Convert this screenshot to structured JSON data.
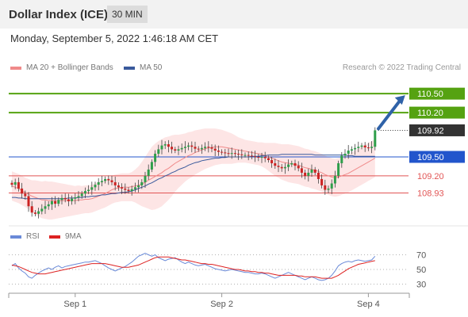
{
  "header": {
    "title": "Dollar Index (ICE)",
    "timeframe": "30 MIN"
  },
  "datetime": "Monday, September 5, 2022 1:46:18 AM CET",
  "credit": "Research © 2022 Trading Central",
  "legend": {
    "ma20": {
      "label": "MA 20 + Bollinger Bands",
      "color": "#f08a8a"
    },
    "ma50": {
      "label": "MA 50",
      "color": "#3a5a9c"
    },
    "rsi": {
      "label": "RSI",
      "color": "#6a8ad8"
    },
    "rsi_ma": {
      "label": "9MA",
      "color": "#dd2222"
    }
  },
  "colors": {
    "resistance": "#55a211",
    "pivot": "#2255cc",
    "support": "#e25555",
    "bull": "#2e9e4a",
    "bear": "#cc2222",
    "arrow": "#2f62a8"
  },
  "chart_data": [
    {
      "type": "candlestick",
      "title": "Dollar Index (ICE)",
      "ylim": [
        108.41,
        110.79
      ],
      "x_tick_labels": [
        "Sep 1",
        "Sep 2",
        "Sep 4"
      ],
      "x_tick_index": [
        19,
        63,
        107
      ],
      "n_bars": 110,
      "last_price": 109.92,
      "levels": [
        {
          "value": 110.5,
          "label": "110.50",
          "role": "resistance"
        },
        {
          "value": 110.2,
          "label": "110.20",
          "role": "resistance"
        },
        {
          "value": 109.92,
          "label": "109.92",
          "role": "last"
        },
        {
          "value": 109.5,
          "label": "109.50",
          "role": "pivot"
        },
        {
          "value": 109.2,
          "label": "109.20",
          "role": "support"
        },
        {
          "value": 108.93,
          "label": "108.93",
          "role": "support"
        }
      ],
      "arrow": {
        "from_index": 110,
        "from_value": 109.92,
        "to_index": 119,
        "to_value": 110.5
      },
      "closes": [
        109.06,
        109.1,
        109.0,
        108.92,
        108.88,
        108.72,
        108.62,
        108.6,
        108.64,
        108.68,
        108.72,
        108.75,
        108.8,
        108.76,
        108.82,
        108.85,
        108.83,
        108.8,
        108.84,
        108.86,
        108.88,
        108.92,
        108.96,
        108.98,
        109.02,
        109.06,
        109.1,
        109.12,
        109.15,
        109.13,
        109.1,
        109.05,
        109.02,
        109.0,
        108.98,
        108.96,
        108.99,
        109.02,
        109.05,
        109.1,
        109.2,
        109.3,
        109.42,
        109.55,
        109.62,
        109.68,
        109.7,
        109.66,
        109.62,
        109.6,
        109.62,
        109.64,
        109.66,
        109.68,
        109.66,
        109.63,
        109.62,
        109.64,
        109.66,
        109.65,
        109.63,
        109.6,
        109.58,
        109.57,
        109.56,
        109.55,
        109.56,
        109.55,
        109.54,
        109.53,
        109.53,
        109.52,
        109.51,
        109.5,
        109.49,
        109.5,
        109.48,
        109.45,
        109.4,
        109.36,
        109.34,
        109.32,
        109.34,
        109.38,
        109.4,
        109.36,
        109.32,
        109.25,
        109.2,
        109.25,
        109.3,
        109.25,
        109.15,
        109.05,
        108.98,
        109.0,
        109.08,
        109.2,
        109.4,
        109.52,
        109.55,
        109.6,
        109.62,
        109.64,
        109.66,
        109.68,
        109.65,
        109.64,
        109.66,
        109.92
      ],
      "ma20": [
        109.04,
        109.02,
        109.0,
        108.97,
        108.94,
        108.91,
        108.88,
        108.86,
        108.84,
        108.82,
        108.82,
        108.81,
        108.81,
        108.81,
        108.81,
        108.81,
        108.81,
        108.81,
        108.81,
        108.81,
        108.82,
        108.82,
        108.83,
        108.83,
        108.84,
        108.86,
        108.88,
        108.9,
        108.92,
        108.95,
        108.98,
        109.0,
        109.01,
        109.02,
        109.02,
        109.02,
        109.03,
        109.04,
        109.05,
        109.07,
        109.1,
        109.13,
        109.16,
        109.19,
        109.22,
        109.25,
        109.29,
        109.32,
        109.36,
        109.4,
        109.43,
        109.46,
        109.49,
        109.52,
        109.54,
        109.57,
        109.59,
        109.61,
        109.63,
        109.64,
        109.65,
        109.66,
        109.66,
        109.66,
        109.65,
        109.64,
        109.63,
        109.62,
        109.61,
        109.6,
        109.59,
        109.58,
        109.57,
        109.56,
        109.55,
        109.54,
        109.52,
        109.5,
        109.48,
        109.46,
        109.44,
        109.42,
        109.41,
        109.4,
        109.39,
        109.38,
        109.37,
        109.35,
        109.33,
        109.32,
        109.3,
        109.29,
        109.27,
        109.25,
        109.22,
        109.2,
        109.18,
        109.17,
        109.18,
        109.2,
        109.22,
        109.24,
        109.27,
        109.3,
        109.33,
        109.36,
        109.39,
        109.42,
        109.45,
        109.48
      ],
      "ma50": [
        108.86,
        108.86,
        108.85,
        108.85,
        108.84,
        108.84,
        108.84,
        108.84,
        108.84,
        108.84,
        108.84,
        108.84,
        108.84,
        108.84,
        108.84,
        108.84,
        108.84,
        108.85,
        108.85,
        108.85,
        108.86,
        108.86,
        108.87,
        108.87,
        108.88,
        108.88,
        108.89,
        108.9,
        108.9,
        108.91,
        108.92,
        108.92,
        108.93,
        108.94,
        108.94,
        108.95,
        108.96,
        108.98,
        109.0,
        109.02,
        109.04,
        109.07,
        109.09,
        109.12,
        109.15,
        109.17,
        109.2,
        109.22,
        109.25,
        109.27,
        109.3,
        109.32,
        109.34,
        109.37,
        109.39,
        109.41,
        109.42,
        109.44,
        109.45,
        109.46,
        109.47,
        109.48,
        109.48,
        109.49,
        109.49,
        109.5,
        109.5,
        109.5,
        109.5,
        109.5,
        109.5,
        109.5,
        109.51,
        109.51,
        109.51,
        109.52,
        109.52,
        109.53,
        109.53,
        109.53,
        109.53,
        109.54,
        109.54,
        109.54,
        109.54,
        109.54,
        109.54,
        109.54,
        109.54,
        109.54,
        109.54,
        109.53,
        109.53,
        109.53,
        109.53,
        109.53,
        109.53,
        109.53,
        109.53,
        109.53,
        109.53,
        109.52,
        109.52,
        109.51,
        109.51,
        109.51,
        109.51,
        109.51,
        109.51,
        109.51
      ],
      "band_width": [
        0.23,
        0.23,
        0.23,
        0.23,
        0.23,
        0.24,
        0.25,
        0.27,
        0.28,
        0.29,
        0.3,
        0.3,
        0.3,
        0.29,
        0.28,
        0.27,
        0.26,
        0.25,
        0.24,
        0.23,
        0.23,
        0.22,
        0.22,
        0.22,
        0.22,
        0.22,
        0.22,
        0.22,
        0.22,
        0.22,
        0.22,
        0.22,
        0.22,
        0.22,
        0.22,
        0.22,
        0.23,
        0.26,
        0.3,
        0.35,
        0.4,
        0.45,
        0.5,
        0.52,
        0.53,
        0.53,
        0.52,
        0.5,
        0.48,
        0.45,
        0.42,
        0.4,
        0.38,
        0.37,
        0.36,
        0.35,
        0.34,
        0.33,
        0.32,
        0.31,
        0.3,
        0.29,
        0.28,
        0.27,
        0.26,
        0.25,
        0.24,
        0.22,
        0.2,
        0.19,
        0.18,
        0.18,
        0.18,
        0.18,
        0.18,
        0.19,
        0.2,
        0.22,
        0.24,
        0.26,
        0.27,
        0.28,
        0.29,
        0.3,
        0.3,
        0.3,
        0.3,
        0.3,
        0.3,
        0.3,
        0.3,
        0.3,
        0.3,
        0.3,
        0.3,
        0.3,
        0.3,
        0.3,
        0.3,
        0.3,
        0.3,
        0.3,
        0.3,
        0.3,
        0.3,
        0.3,
        0.3,
        0.3,
        0.3,
        0.3
      ]
    },
    {
      "type": "line",
      "title": "RSI",
      "ylim": [
        23,
        77
      ],
      "y_ticks": [
        70,
        50,
        30
      ],
      "series": [
        {
          "name": "RSI",
          "values": [
            55,
            58,
            52,
            48,
            45,
            40,
            38,
            42,
            45,
            48,
            50,
            52,
            50,
            53,
            55,
            52,
            54,
            55,
            56,
            57,
            58,
            59,
            60,
            60,
            61,
            62,
            60,
            58,
            55,
            52,
            50,
            48,
            50,
            52,
            54,
            57,
            60,
            64,
            68,
            70,
            72,
            70,
            68,
            70,
            66,
            64,
            62,
            64,
            65,
            66,
            63,
            60,
            58,
            60,
            58,
            56,
            55,
            56,
            57,
            55,
            53,
            51,
            50,
            49,
            48,
            49,
            50,
            49,
            48,
            47,
            46,
            46,
            45,
            44,
            44,
            45,
            44,
            42,
            40,
            38,
            40,
            42,
            44,
            46,
            44,
            42,
            40,
            38,
            36,
            38,
            40,
            38,
            36,
            35,
            36,
            38,
            42,
            48,
            55,
            58,
            60,
            61,
            60,
            62,
            63,
            62,
            61,
            62,
            63,
            68
          ]
        },
        {
          "name": "9MA",
          "values": [
            56,
            55,
            54,
            52,
            50,
            48,
            46,
            45,
            44,
            44,
            44,
            45,
            46,
            47,
            48,
            49,
            50,
            51,
            52,
            53,
            54,
            55,
            56,
            57,
            58,
            58,
            58,
            58,
            58,
            57,
            56,
            55,
            54,
            53,
            53,
            53,
            54,
            55,
            56,
            58,
            60,
            62,
            64,
            66,
            67,
            67,
            67,
            67,
            66,
            65,
            64,
            63,
            63,
            62,
            61,
            60,
            59,
            58,
            58,
            57,
            57,
            56,
            55,
            54,
            53,
            52,
            51,
            50,
            50,
            49,
            48,
            48,
            47,
            47,
            46,
            46,
            45,
            45,
            44,
            43,
            42,
            42,
            42,
            42,
            42,
            42,
            41,
            41,
            40,
            40,
            40,
            40,
            39,
            38,
            38,
            38,
            38,
            40,
            42,
            45,
            48,
            51,
            53,
            55,
            57,
            58,
            59,
            60,
            61,
            62
          ]
        }
      ]
    }
  ]
}
